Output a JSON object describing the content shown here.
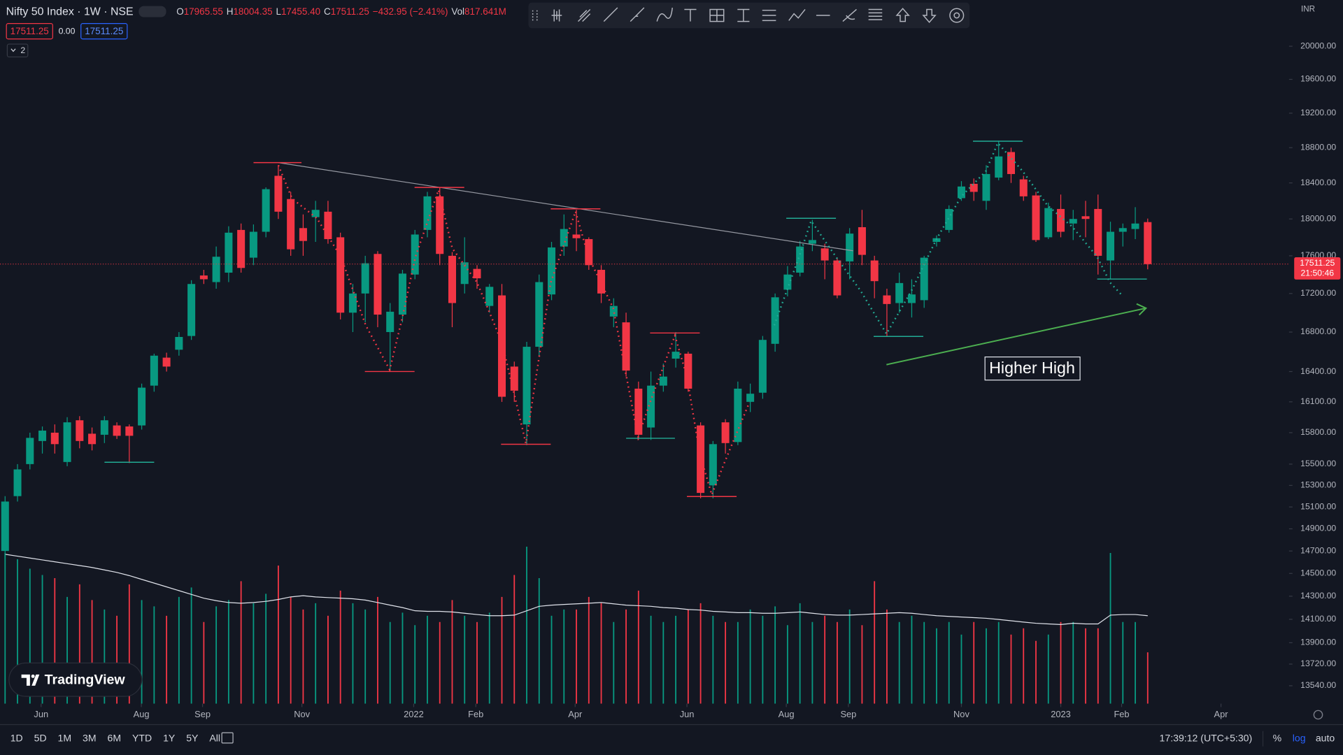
{
  "header": {
    "symbol": "Nifty 50 Index · 1W · NSE",
    "ohlc": [
      {
        "label": "O",
        "value": "17965.55"
      },
      {
        "label": "H",
        "value": "18004.35"
      },
      {
        "label": "L",
        "value": "17455.40"
      },
      {
        "label": "C",
        "value": "17511.25"
      }
    ],
    "change": "−432.95 (−2.41%)",
    "volume_label": "Vol",
    "volume_value": "817.641M",
    "sell": "17511.25",
    "spread": "0.00",
    "buy": "17511.25",
    "indicators": "2"
  },
  "currency": "INR",
  "brand": "TradingView",
  "bottom_bar": {
    "ranges": [
      "1D",
      "5D",
      "1M",
      "3M",
      "6M",
      "YTD",
      "1Y",
      "5Y",
      "All"
    ],
    "time": "17:39:12 (UTC+5:30)",
    "options": [
      "%",
      "log",
      "auto"
    ]
  },
  "chart_data": {
    "type": "candlestick",
    "log_scale": true,
    "up_color": "#089981",
    "down_color": "#f23645",
    "volume_ma_color": "#e0e3eb",
    "annotation": "Higher High",
    "last_price": 17511.25,
    "countdown": "21:50:46",
    "xlim": [
      -0.41,
      103.38
    ],
    "xticks": [
      {
        "value": 2.9,
        "label": "Jun"
      },
      {
        "value": 10.97,
        "label": "Aug"
      },
      {
        "value": 15.9,
        "label": "Sep"
      },
      {
        "value": 23.9,
        "label": "Nov"
      },
      {
        "value": 32.9,
        "label": "2022"
      },
      {
        "value": 37.9,
        "label": "Feb"
      },
      {
        "value": 45.9,
        "label": "Apr"
      },
      {
        "value": 54.9,
        "label": "Jun"
      },
      {
        "value": 62.9,
        "label": "Aug"
      },
      {
        "value": 67.9,
        "label": "Sep"
      },
      {
        "value": 77,
        "label": "Nov"
      },
      {
        "value": 85,
        "label": "2023"
      },
      {
        "value": 89.9,
        "label": "Feb"
      },
      {
        "value": 97.9,
        "label": "Apr"
      }
    ],
    "ylim": [
      13393,
      20572
    ],
    "yticks": [
      {
        "value": 20000,
        "label": "20000.00"
      },
      {
        "value": 19600,
        "label": "19600.00"
      },
      {
        "value": 19200,
        "label": "19200.00"
      },
      {
        "value": 18800,
        "label": "18800.00"
      },
      {
        "value": 18400,
        "label": "18400.00"
      },
      {
        "value": 18000,
        "label": "18000.00"
      },
      {
        "value": 17600,
        "label": "17600.00"
      },
      {
        "value": 17200,
        "label": "17200.00"
      },
      {
        "value": 16800,
        "label": "16800.00"
      },
      {
        "value": 16400,
        "label": "16400.00"
      },
      {
        "value": 16100,
        "label": "16100.00"
      },
      {
        "value": 15800,
        "label": "15800.00"
      },
      {
        "value": 15500,
        "label": "15500.00"
      },
      {
        "value": 15300,
        "label": "15300.00"
      },
      {
        "value": 15100,
        "label": "15100.00"
      },
      {
        "value": 14900,
        "label": "14900.00"
      },
      {
        "value": 14700,
        "label": "14700.00"
      },
      {
        "value": 14500,
        "label": "14500.00"
      },
      {
        "value": 14300,
        "label": "14300.00"
      },
      {
        "value": 14100,
        "label": "14100.00"
      },
      {
        "value": 13900,
        "label": "13900.00"
      },
      {
        "value": 13720,
        "label": "13720.00"
      },
      {
        "value": 13540,
        "label": "13540.00"
      }
    ],
    "vlim": [
      0,
      3000
    ],
    "open": [
      14700,
      15200,
      15500,
      15720,
      15800,
      15520,
      15920,
      15790,
      15780,
      15870,
      15860,
      15870,
      16260,
      16540,
      16620,
      16760,
      17390,
      17320,
      17420,
      17880,
      17580,
      17860,
      18480,
      18220,
      17900,
      18020,
      18080,
      17800,
      17000,
      17200,
      17620,
      16800,
      16980,
      17400,
      17880,
      18250,
      17600,
      17300,
      17460,
      17070,
      17180,
      16450,
      15880,
      16650,
      17190,
      17700,
      17830,
      17780,
      17450,
      16960,
      16900,
      16230,
      15850,
      16260,
      16530,
      16580,
      15870,
      15300,
      15900,
      15710,
      16100,
      16190,
      16680,
      17240,
      17420,
      17730,
      17680,
      17550,
      17540,
      17910,
      17550,
      17180,
      17100,
      17100,
      17130,
      17750,
      17880,
      18230,
      18390,
      18200,
      18460,
      18750,
      18440,
      18260,
      17800,
      18110,
      17950,
      18030,
      18110,
      17550,
      17860,
      17890,
      17965.55
    ],
    "high": [
      15200,
      15500,
      15800,
      15860,
      15880,
      15950,
      15960,
      15850,
      15960,
      15900,
      15880,
      16280,
      16580,
      16590,
      16800,
      17340,
      17450,
      17700,
      17920,
      17950,
      17940,
      18350,
      18600,
      18300,
      18050,
      18200,
      18200,
      17850,
      17300,
      17600,
      17650,
      17100,
      17450,
      17880,
      18300,
      18350,
      17640,
      17800,
      17500,
      17300,
      17300,
      16500,
      16700,
      17400,
      17750,
      18050,
      18100,
      17800,
      17500,
      17150,
      17000,
      16300,
      16400,
      16480,
      16800,
      16600,
      15900,
      15720,
      15930,
      16300,
      16280,
      16760,
      17200,
      17490,
      17760,
      17990,
      17730,
      17580,
      17900,
      18100,
      17600,
      17250,
      17420,
      17350,
      17600,
      17820,
      18150,
      18420,
      18450,
      18600,
      18880,
      18800,
      18480,
      18300,
      18180,
      18270,
      18100,
      18200,
      18270,
      17970,
      17950,
      18130,
      18004.35
    ],
    "low": [
      14600,
      15150,
      15450,
      15600,
      15600,
      15480,
      15650,
      15630,
      15700,
      15740,
      15510,
      15830,
      16200,
      16400,
      16560,
      16720,
      17300,
      17250,
      17320,
      17420,
      17500,
      17800,
      18000,
      17600,
      17600,
      17750,
      17730,
      16930,
      16800,
      16900,
      16850,
      16410,
      16900,
      17350,
      17800,
      17500,
      16850,
      17200,
      17250,
      17000,
      16100,
      16100,
      15680,
      16550,
      17130,
      17600,
      17650,
      17450,
      17100,
      16850,
      16350,
      15730,
      15730,
      16200,
      16440,
      16200,
      15180,
      15180,
      15600,
      15680,
      16000,
      16130,
      16600,
      17170,
      17380,
      17650,
      17350,
      17150,
      17350,
      17500,
      17150,
      16750,
      17000,
      16950,
      17050,
      17700,
      17850,
      18200,
      18200,
      18100,
      18430,
      18400,
      18200,
      17750,
      17780,
      17800,
      17770,
      17800,
      17400,
      17350,
      17700,
      17780,
      17455.4
    ],
    "close": [
      15150,
      15450,
      15750,
      15820,
      15690,
      15900,
      15720,
      15690,
      15920,
      15770,
      15770,
      16240,
      16560,
      16450,
      16750,
      17300,
      17350,
      17590,
      17850,
      17470,
      17860,
      18330,
      18080,
      17670,
      17760,
      18100,
      17780,
      17000,
      17200,
      17520,
      16980,
      17010,
      17410,
      17830,
      18250,
      17620,
      17100,
      17530,
      17360,
      17270,
      16150,
      16210,
      16650,
      17320,
      17690,
      17890,
      17790,
      17500,
      17200,
      17070,
      16410,
      15780,
      16260,
      16350,
      16600,
      16230,
      15230,
      15690,
      15700,
      16230,
      16180,
      16720,
      17160,
      17400,
      17700,
      17770,
      17550,
      17180,
      17840,
      17610,
      17330,
      17090,
      17310,
      17190,
      17580,
      17790,
      18110,
      18360,
      18300,
      18500,
      18700,
      18500,
      18250,
      17770,
      18120,
      17860,
      18000,
      18000,
      17600,
      17860,
      17900,
      17950,
      17511.25
    ],
    "volume": [
      2400,
      2300,
      2150,
      2050,
      2000,
      1700,
      1900,
      1650,
      1500,
      1400,
      1900,
      1650,
      1550,
      1400,
      1700,
      1850,
      1300,
      1550,
      1650,
      1950,
      1600,
      1750,
      2200,
      1700,
      1500,
      1600,
      1400,
      1800,
      1600,
      1500,
      1700,
      1300,
      1450,
      1250,
      1400,
      1300,
      1650,
      1400,
      1300,
      1450,
      1700,
      2050,
      2500,
      2000,
      1400,
      1500,
      1500,
      1700,
      1600,
      1300,
      1500,
      1800,
      1400,
      1300,
      1400,
      1500,
      1600,
      1400,
      1300,
      1300,
      1500,
      1400,
      1550,
      1250,
      1600,
      1300,
      1400,
      1300,
      1500,
      1250,
      1950,
      1500,
      1300,
      1400,
      1300,
      1200,
      1300,
      1100,
      1300,
      1200,
      1300,
      1100,
      1200,
      1000,
      1100,
      1300,
      1300,
      1200,
      1200,
      2400,
      1300,
      1300,
      817.641
    ],
    "volume_ma": [
      2380,
      2350,
      2320,
      2290,
      2260,
      2230,
      2200,
      2170,
      2130,
      2090,
      2040,
      1980,
      1920,
      1860,
      1800,
      1740,
      1680,
      1640,
      1610,
      1600,
      1610,
      1630,
      1660,
      1700,
      1720,
      1700,
      1690,
      1680,
      1670,
      1650,
      1610,
      1570,
      1530,
      1480,
      1470,
      1470,
      1460,
      1440,
      1420,
      1400,
      1400,
      1410,
      1480,
      1550,
      1570,
      1580,
      1590,
      1600,
      1610,
      1590,
      1570,
      1560,
      1550,
      1530,
      1520,
      1500,
      1490,
      1470,
      1460,
      1450,
      1450,
      1440,
      1440,
      1450,
      1460,
      1440,
      1420,
      1410,
      1410,
      1420,
      1430,
      1440,
      1450,
      1440,
      1420,
      1400,
      1390,
      1380,
      1370,
      1360,
      1340,
      1320,
      1300,
      1280,
      1270,
      1260,
      1280,
      1270,
      1270,
      1410,
      1420,
      1420,
      1400
    ]
  }
}
